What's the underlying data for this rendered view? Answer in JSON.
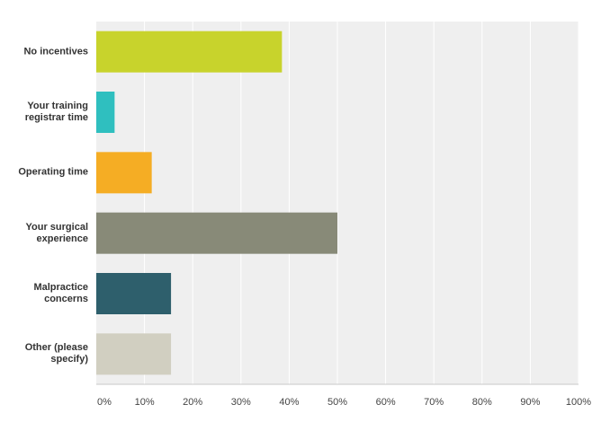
{
  "chart_data": {
    "type": "hbar",
    "categories": [
      "No incentives",
      "Your training registrar time",
      "Operating time",
      "Your surgical experience",
      "Malpractice concerns",
      "Other (please specify)"
    ],
    "values": [
      38.5,
      3.8,
      11.5,
      50.0,
      15.5,
      15.5
    ],
    "colors": [
      "#c8d32c",
      "#2fbfbf",
      "#f5ad24",
      "#888a78",
      "#2e5f6c",
      "#d1cfc1"
    ],
    "xlim": [
      0,
      100
    ],
    "xticks": [
      {
        "value": 0,
        "label": "0%"
      },
      {
        "value": 10,
        "label": "10%"
      },
      {
        "value": 20,
        "label": "20%"
      },
      {
        "value": 30,
        "label": "30%"
      },
      {
        "value": 40,
        "label": "40%"
      },
      {
        "value": 50,
        "label": "50%"
      },
      {
        "value": 60,
        "label": "60%"
      },
      {
        "value": 70,
        "label": "70%"
      },
      {
        "value": 80,
        "label": "80%"
      },
      {
        "value": 90,
        "label": "90%"
      },
      {
        "value": 100,
        "label": "100%"
      }
    ],
    "grid": true
  }
}
